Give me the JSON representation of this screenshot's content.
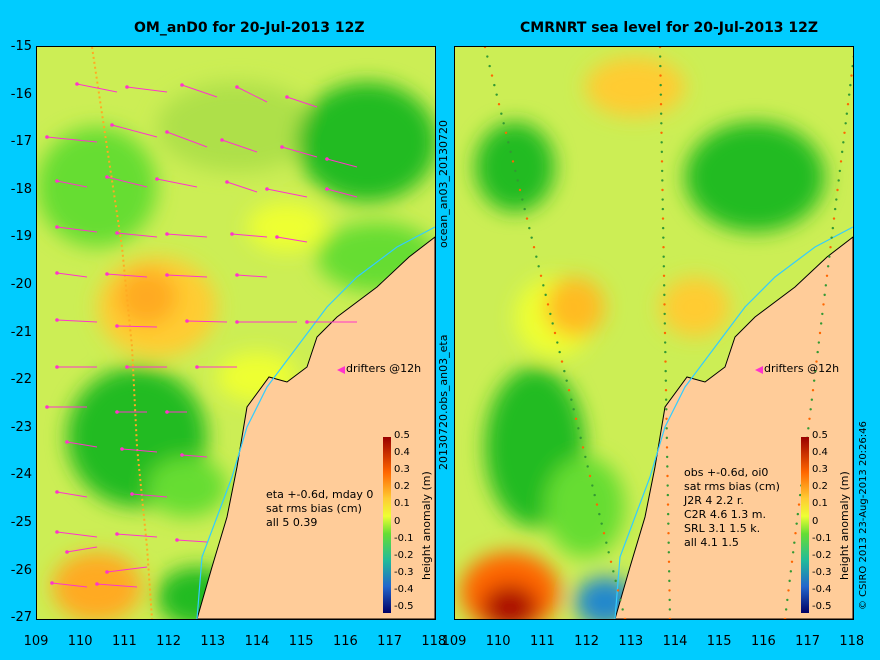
{
  "left_panel": {
    "title": "OM_anD0 for 20-Jul-2013 12Z",
    "side_label_top": "ocean_an03_20130720",
    "side_label_bottom": "20130720.obs_an03_eta",
    "drifters_label": "drifters @12h",
    "stats": [
      "eta +-0.6d, mday 0",
      "sat rms bias (cm)",
      "all 5 0.39"
    ],
    "colorbar_title": "height anomaly (m)"
  },
  "right_panel": {
    "title": "CMRNRT sea level  for 20-Jul-2013 12Z",
    "drifters_label": "drifters @12h",
    "stats": [
      "obs +-0.6d, oi0",
      "sat rms bias (cm)",
      "J2R   4  2.2  r.",
      "C2R   4.6  1.3  m.",
      "SRL   3.1  1.5  k.",
      "all   4.1  1.5"
    ],
    "colorbar_title": "height anomaly (m)",
    "credit": "© CSIRO 2013   23-Aug-2013 20:26:46"
  },
  "axes": {
    "lat_ticks": [
      "-15",
      "-16",
      "-17",
      "-18",
      "-19",
      "-20",
      "-21",
      "-22",
      "-23",
      "-24",
      "-25",
      "-26",
      "-27"
    ],
    "lon_ticks": [
      "109",
      "110",
      "111",
      "112",
      "113",
      "114",
      "115",
      "116",
      "117",
      "118"
    ],
    "lon_ticks_left_end": "118",
    "lon_ticks_right_start": "109"
  },
  "colorbar_ticks": [
    "0.5",
    "0.4",
    "0.3",
    "0.2",
    "0.1",
    "0",
    "-0.1",
    "-0.2",
    "-0.3",
    "-0.4",
    "-0.5"
  ],
  "colors": {
    "background": "#00ccff",
    "land": "#ffcc99",
    "coastline": "#000000",
    "shelf_contour": "#33ccff",
    "arrows": "#ff33cc",
    "neutral": "#ccee55",
    "yellow": "#eeff33",
    "green": "#66dd33",
    "dark_green": "#22bb22",
    "orange": "#ffbb22",
    "red": "#cc2200"
  }
}
